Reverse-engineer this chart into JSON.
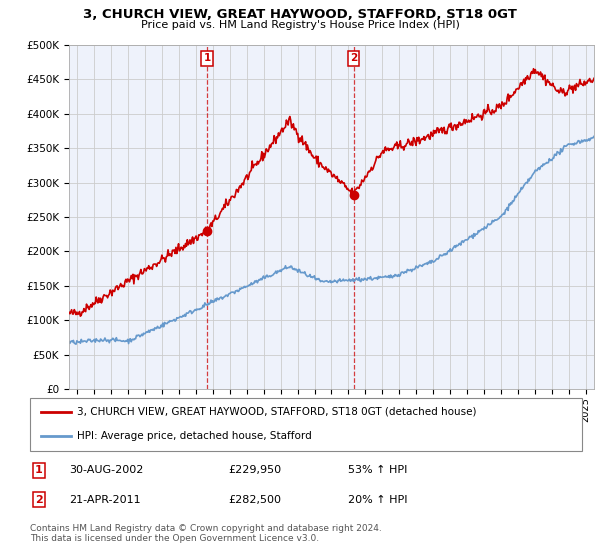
{
  "title": "3, CHURCH VIEW, GREAT HAYWOOD, STAFFORD, ST18 0GT",
  "subtitle": "Price paid vs. HM Land Registry's House Price Index (HPI)",
  "ylabel_ticks": [
    "£0",
    "£50K",
    "£100K",
    "£150K",
    "£200K",
    "£250K",
    "£300K",
    "£350K",
    "£400K",
    "£450K",
    "£500K"
  ],
  "ytick_values": [
    0,
    50000,
    100000,
    150000,
    200000,
    250000,
    300000,
    350000,
    400000,
    450000,
    500000
  ],
  "ylim": [
    0,
    500000
  ],
  "xlim_start": 1994.5,
  "xlim_end": 2025.5,
  "red_line_color": "#cc0000",
  "blue_line_color": "#6699cc",
  "sale1_x": 2002.66,
  "sale1_y": 229950,
  "sale2_x": 2011.3,
  "sale2_y": 282500,
  "sale1_label": "30-AUG-2002",
  "sale1_price": "£229,950",
  "sale1_hpi": "53% ↑ HPI",
  "sale2_label": "21-APR-2011",
  "sale2_price": "£282,500",
  "sale2_hpi": "20% ↑ HPI",
  "legend_red": "3, CHURCH VIEW, GREAT HAYWOOD, STAFFORD, ST18 0GT (detached house)",
  "legend_blue": "HPI: Average price, detached house, Stafford",
  "footer": "Contains HM Land Registry data © Crown copyright and database right 2024.\nThis data is licensed under the Open Government Licence v3.0.",
  "background_color": "#ffffff",
  "grid_color": "#cccccc",
  "plot_bg_color": "#eef2fb"
}
